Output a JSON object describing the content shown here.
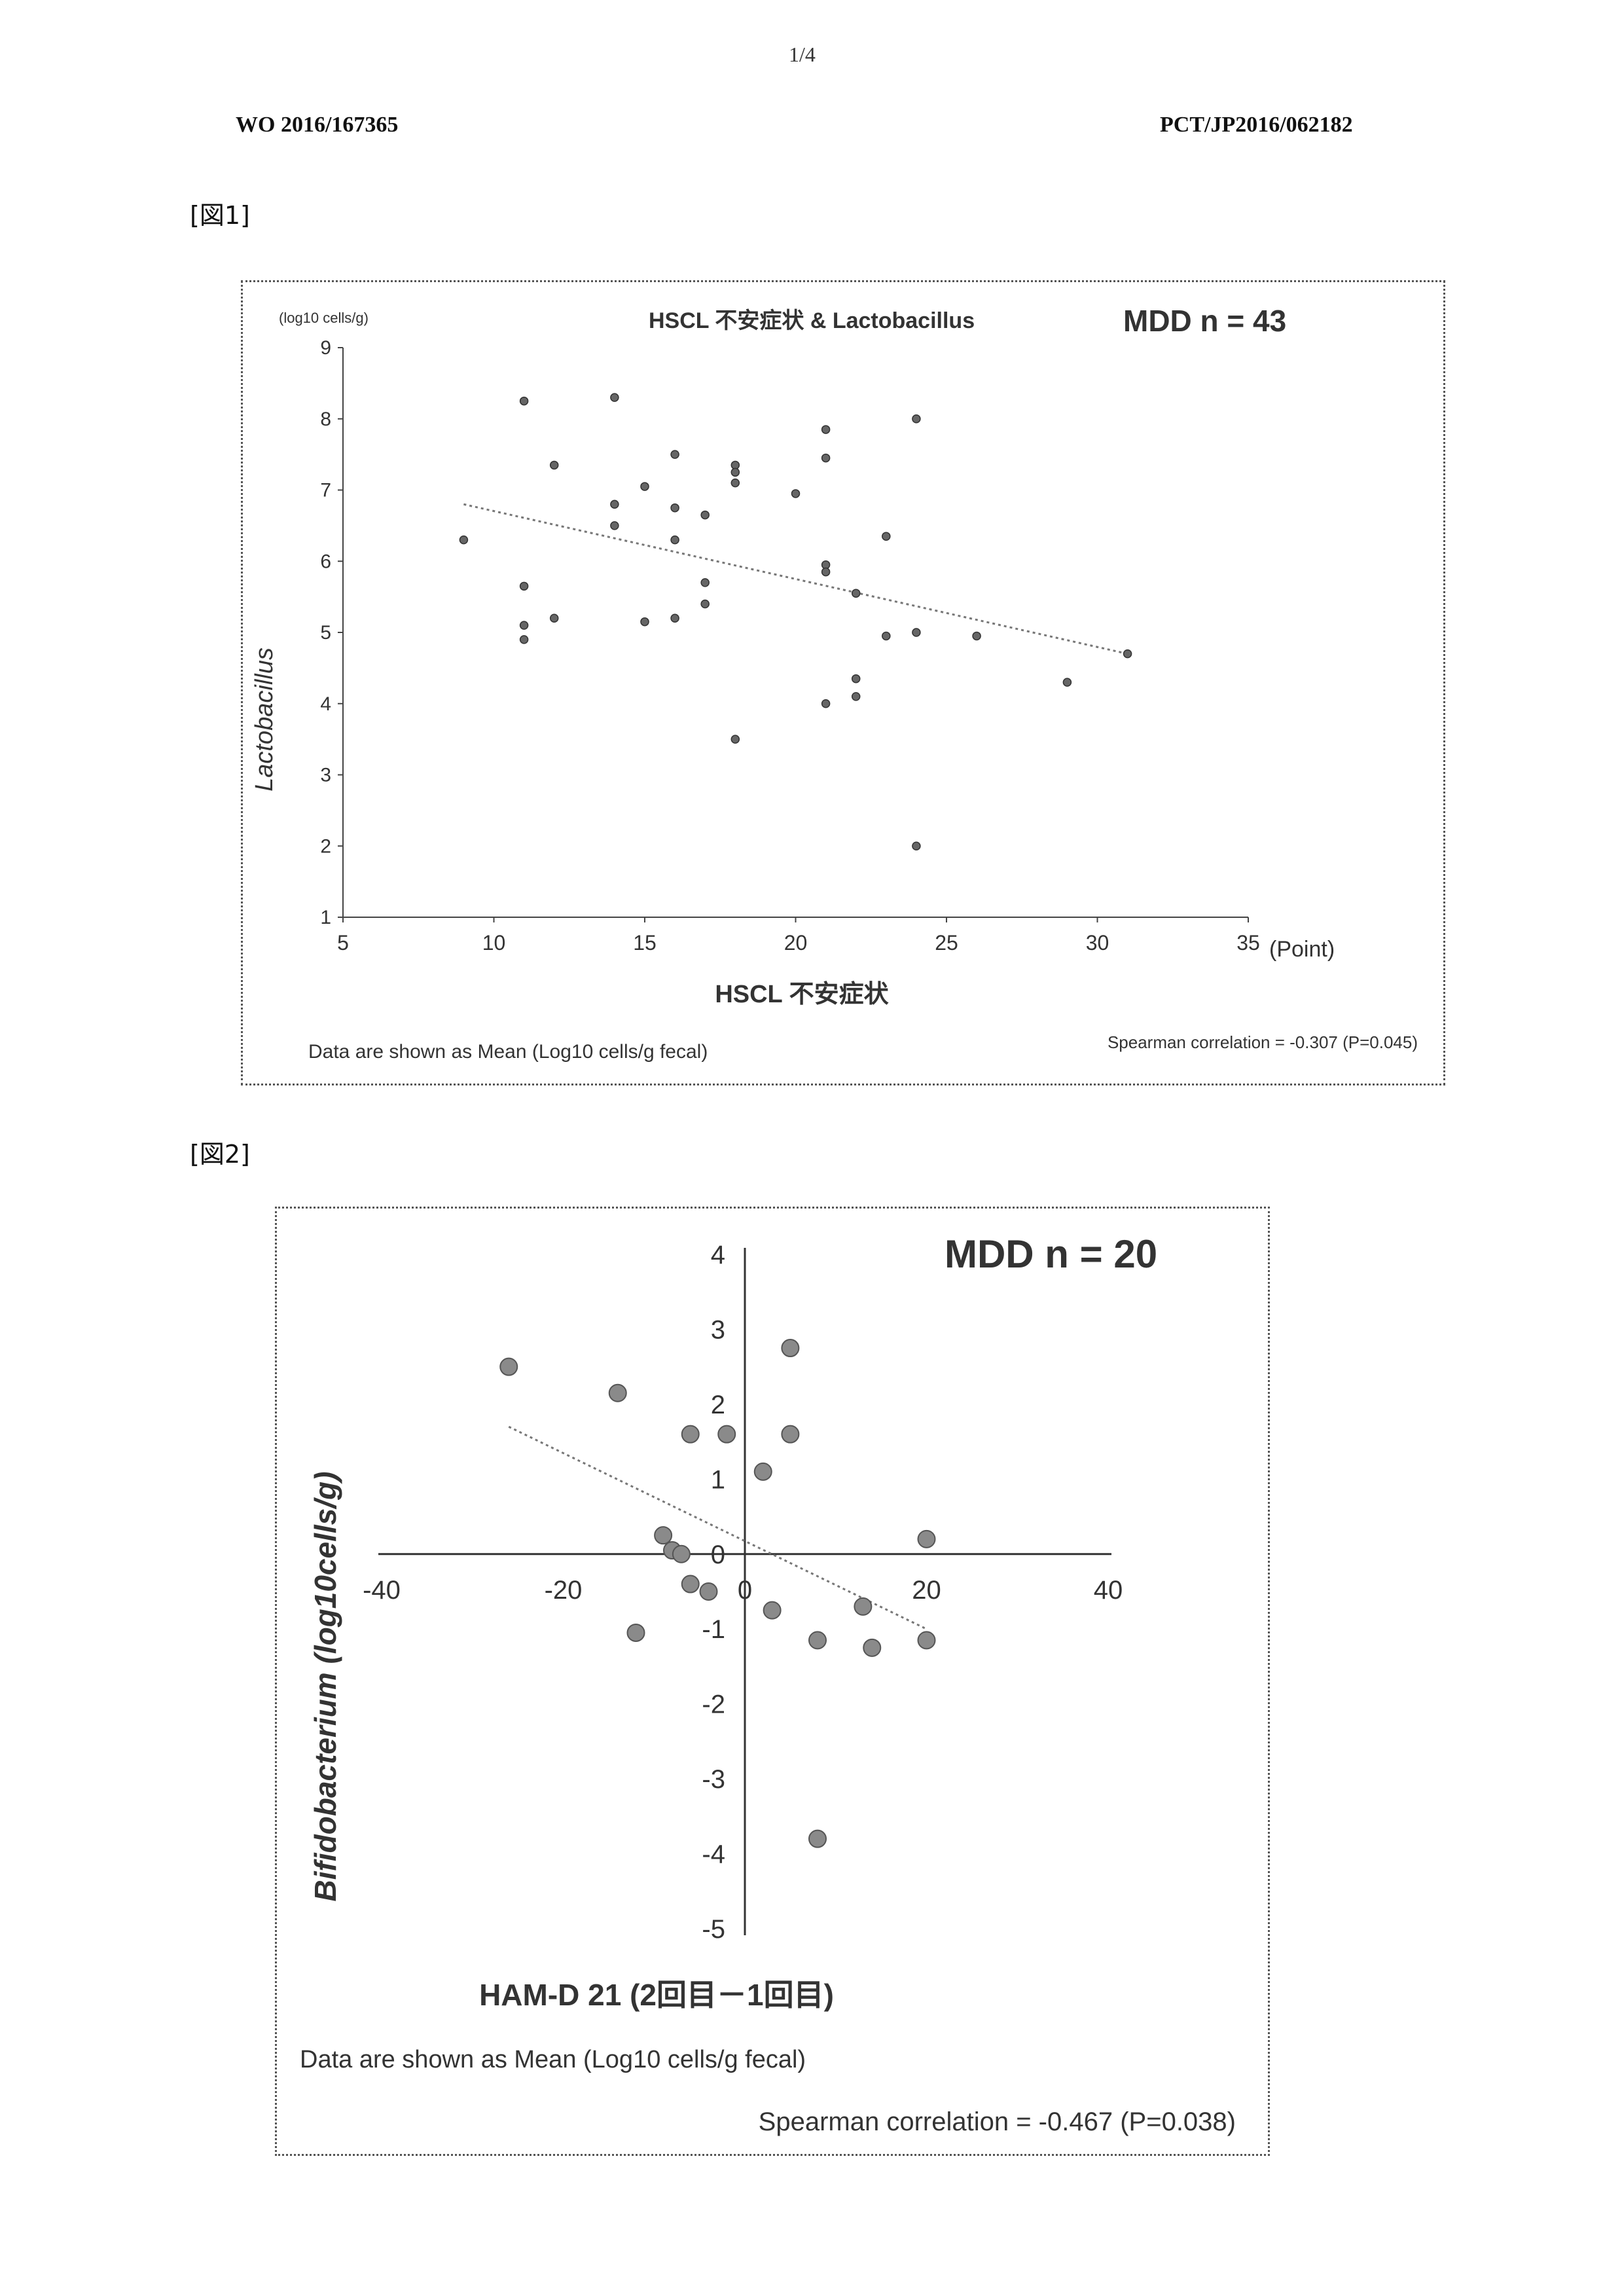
{
  "header": {
    "page_number": "1/4",
    "publication_number": "WO 2016/167365",
    "application_number": "PCT/JP2016/062182"
  },
  "figures": [
    {
      "label": "[図1]"
    },
    {
      "label": "[図2]"
    }
  ],
  "chart_data": [
    {
      "type": "scatter",
      "title": "HSCL 不安症状 & Lactobacillus",
      "group_label": "MDD n = 43",
      "xlabel": "HSCL 不安症状",
      "x_unit": "(Point)",
      "ylabel": "Lactobacillus",
      "y_unit": "(log10 cells/g)",
      "xlim": [
        5,
        35
      ],
      "ylim": [
        1,
        9
      ],
      "x_ticks": [
        5,
        10,
        15,
        20,
        25,
        30,
        35
      ],
      "y_ticks": [
        1,
        2,
        3,
        4,
        5,
        6,
        7,
        8,
        9
      ],
      "grid": false,
      "trendline": {
        "x": [
          9,
          31
        ],
        "y": [
          6.8,
          4.7
        ]
      },
      "points": [
        {
          "x": 9,
          "y": 6.3
        },
        {
          "x": 11,
          "y": 8.25
        },
        {
          "x": 11,
          "y": 5.65
        },
        {
          "x": 11,
          "y": 5.1
        },
        {
          "x": 11,
          "y": 4.9
        },
        {
          "x": 12,
          "y": 7.35
        },
        {
          "x": 12,
          "y": 5.2
        },
        {
          "x": 14,
          "y": 8.3
        },
        {
          "x": 14,
          "y": 6.8
        },
        {
          "x": 14,
          "y": 6.5
        },
        {
          "x": 15,
          "y": 7.05
        },
        {
          "x": 15,
          "y": 5.15
        },
        {
          "x": 16,
          "y": 7.5
        },
        {
          "x": 16,
          "y": 6.75
        },
        {
          "x": 16,
          "y": 6.3
        },
        {
          "x": 16,
          "y": 5.2
        },
        {
          "x": 17,
          "y": 6.65
        },
        {
          "x": 17,
          "y": 5.7
        },
        {
          "x": 17,
          "y": 5.4
        },
        {
          "x": 18,
          "y": 7.35
        },
        {
          "x": 18,
          "y": 7.25
        },
        {
          "x": 18,
          "y": 7.1
        },
        {
          "x": 18,
          "y": 3.5
        },
        {
          "x": 20,
          "y": 6.95
        },
        {
          "x": 21,
          "y": 7.85
        },
        {
          "x": 21,
          "y": 7.45
        },
        {
          "x": 21,
          "y": 5.95
        },
        {
          "x": 21,
          "y": 5.85
        },
        {
          "x": 21,
          "y": 4.0
        },
        {
          "x": 22,
          "y": 5.55
        },
        {
          "x": 22,
          "y": 4.35
        },
        {
          "x": 22,
          "y": 4.1
        },
        {
          "x": 23,
          "y": 6.35
        },
        {
          "x": 23,
          "y": 4.95
        },
        {
          "x": 24,
          "y": 8.0
        },
        {
          "x": 24,
          "y": 5.0
        },
        {
          "x": 24,
          "y": 2.0
        },
        {
          "x": 26,
          "y": 4.95
        },
        {
          "x": 29,
          "y": 4.3
        },
        {
          "x": 31,
          "y": 4.7
        }
      ],
      "footnote": "Data are shown as Mean (Log10 cells/g fecal)",
      "correlation": "Spearman correlation = -0.307 (P=0.045)"
    },
    {
      "type": "scatter",
      "group_label": "MDD n = 20",
      "xlabel": "HAM-D 21 (2回目－1回目)",
      "ylabel": "Bifidobacterium (log10cells/g)",
      "xlim": [
        -40,
        40
      ],
      "ylim": [
        -5,
        4
      ],
      "x_ticks": [
        -40,
        -20,
        0,
        20,
        40
      ],
      "y_ticks": [
        4,
        3,
        2,
        1,
        0,
        -1,
        -2,
        -3,
        -4,
        -5
      ],
      "grid": false,
      "trendline": {
        "x": [
          -26,
          20
        ],
        "y": [
          1.7,
          -1.0
        ]
      },
      "points": [
        {
          "x": -26,
          "y": 2.5
        },
        {
          "x": -14,
          "y": 2.15
        },
        {
          "x": -6,
          "y": 1.6
        },
        {
          "x": -2,
          "y": 1.6
        },
        {
          "x": 5,
          "y": 2.75
        },
        {
          "x": 5,
          "y": 1.6
        },
        {
          "x": 2,
          "y": 1.1
        },
        {
          "x": -9,
          "y": 0.25
        },
        {
          "x": -8,
          "y": 0.05
        },
        {
          "x": -7,
          "y": 0.0
        },
        {
          "x": -6,
          "y": -0.4
        },
        {
          "x": -4,
          "y": -0.5
        },
        {
          "x": -12,
          "y": -1.05
        },
        {
          "x": 3,
          "y": -0.75
        },
        {
          "x": 8,
          "y": -1.15
        },
        {
          "x": 13,
          "y": -0.7
        },
        {
          "x": 14,
          "y": -1.25
        },
        {
          "x": 20,
          "y": 0.2
        },
        {
          "x": 20,
          "y": -1.15
        },
        {
          "x": 8,
          "y": -3.8
        }
      ],
      "footnote": "Data are shown as Mean (Log10 cells/g fecal)",
      "correlation": "Spearman correlation = -0.467 (P=0.038)"
    }
  ]
}
